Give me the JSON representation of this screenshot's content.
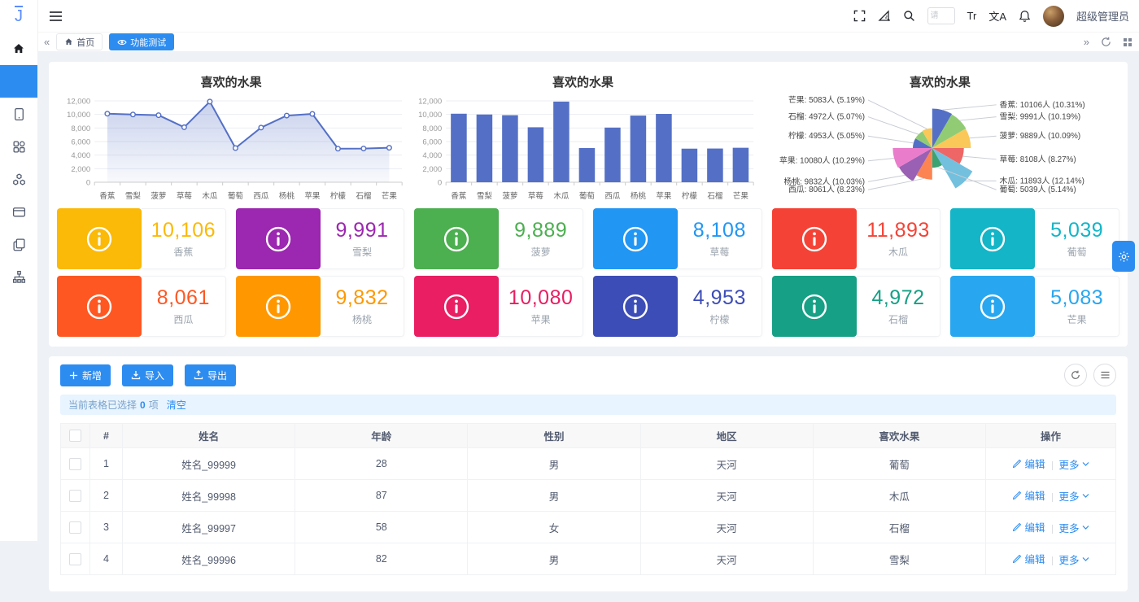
{
  "app": {
    "accent": "#2d8cf0"
  },
  "navbar": {
    "logo": "J",
    "search_placeholder": "请",
    "font_icon_label": "Tr",
    "translate_icon_label": "文A",
    "username": "超级管理员"
  },
  "tabbar": {
    "left_arrow": "«",
    "right_arrow": "»",
    "tabs": [
      {
        "label": "首页",
        "active": false
      },
      {
        "label": "功能测试",
        "active": true
      }
    ]
  },
  "chart_data": [
    {
      "type": "line",
      "title": "喜欢的水果",
      "categories": [
        "香蕉",
        "雪梨",
        "菠萝",
        "草莓",
        "木瓜",
        "葡萄",
        "西瓜",
        "杨桃",
        "苹果",
        "柠檬",
        "石榴",
        "芒果"
      ],
      "values": [
        10106,
        9991,
        9889,
        8108,
        11893,
        5039,
        8061,
        9832,
        10080,
        4953,
        4972,
        5083
      ],
      "ylim": [
        0,
        12000
      ],
      "ytick_step": 2000,
      "color": "#5470c6",
      "area": true,
      "grid": true,
      "legend": "none"
    },
    {
      "type": "bar",
      "title": "喜欢的水果",
      "categories": [
        "香蕉",
        "雪梨",
        "菠萝",
        "草莓",
        "木瓜",
        "葡萄",
        "西瓜",
        "杨桃",
        "苹果",
        "柠檬",
        "石榴",
        "芒果"
      ],
      "values": [
        10106,
        9991,
        9889,
        8108,
        11893,
        5039,
        8061,
        9832,
        10080,
        4953,
        4972,
        5083
      ],
      "ylim": [
        0,
        12000
      ],
      "ytick_step": 2000,
      "color": "#5470c6",
      "grid": true,
      "legend": "none"
    },
    {
      "type": "pie",
      "subtype": "rose",
      "title": "喜欢的水果",
      "items": [
        {
          "name": "香蕉",
          "value": 10106,
          "percent": "10.31"
        },
        {
          "name": "雪梨",
          "value": 9991,
          "percent": "10.19"
        },
        {
          "name": "菠萝",
          "value": 9889,
          "percent": "10.09"
        },
        {
          "name": "草莓",
          "value": 8108,
          "percent": "8.27"
        },
        {
          "name": "木瓜",
          "value": 11893,
          "percent": "12.14"
        },
        {
          "name": "葡萄",
          "value": 5039,
          "percent": "5.14"
        },
        {
          "name": "西瓜",
          "value": 8061,
          "percent": "8.23"
        },
        {
          "name": "杨桃",
          "value": 9832,
          "percent": "10.03"
        },
        {
          "name": "苹果",
          "value": 10080,
          "percent": "10.29"
        },
        {
          "name": "柠檬",
          "value": 4953,
          "percent": "5.05"
        },
        {
          "name": "石榴",
          "value": 4972,
          "percent": "5.07"
        },
        {
          "name": "芒果",
          "value": 5083,
          "percent": "5.19"
        }
      ],
      "palette": [
        "#5470c6",
        "#91cc75",
        "#fac858",
        "#ee6666",
        "#73c0de",
        "#3ba272",
        "#fc8452",
        "#9a60b4",
        "#ea7ccc",
        "#5470c6",
        "#91cc75",
        "#fac858"
      ]
    }
  ],
  "cards": [
    {
      "label": "香蕉",
      "value": "10,106",
      "color": "#fbb908"
    },
    {
      "label": "雪梨",
      "value": "9,991",
      "color": "#9c27b0"
    },
    {
      "label": "菠萝",
      "value": "9,889",
      "color": "#4caf50"
    },
    {
      "label": "草莓",
      "value": "8,108",
      "color": "#2196f3"
    },
    {
      "label": "木瓜",
      "value": "11,893",
      "color": "#f44336"
    },
    {
      "label": "葡萄",
      "value": "5,039",
      "color": "#13b5c7"
    },
    {
      "label": "西瓜",
      "value": "8,061",
      "color": "#ff5722"
    },
    {
      "label": "杨桃",
      "value": "9,832",
      "color": "#ff9800"
    },
    {
      "label": "苹果",
      "value": "10,080",
      "color": "#e91e63"
    },
    {
      "label": "柠檬",
      "value": "4,953",
      "color": "#3d4db7"
    },
    {
      "label": "石榴",
      "value": "4,972",
      "color": "#16a085"
    },
    {
      "label": "芒果",
      "value": "5,083",
      "color": "#28a7f0"
    }
  ],
  "toolbar": {
    "add": "新增",
    "import": "导入",
    "export": "导出"
  },
  "alert": {
    "prefix": "当前表格已选择",
    "count": "0",
    "suffix": "项",
    "clear": "清空"
  },
  "table": {
    "headers": [
      "#",
      "姓名",
      "年龄",
      "性别",
      "地区",
      "喜欢水果",
      "操作"
    ],
    "rows": [
      {
        "index": "1",
        "name": "姓名_99999",
        "age": "28",
        "gender": "男",
        "region": "天河",
        "fruit": "葡萄"
      },
      {
        "index": "2",
        "name": "姓名_99998",
        "age": "87",
        "gender": "男",
        "region": "天河",
        "fruit": "木瓜"
      },
      {
        "index": "3",
        "name": "姓名_99997",
        "age": "58",
        "gender": "女",
        "region": "天河",
        "fruit": "石榴"
      },
      {
        "index": "4",
        "name": "姓名_99996",
        "age": "82",
        "gender": "男",
        "region": "天河",
        "fruit": "雪梨"
      }
    ],
    "actions": {
      "edit": "编辑",
      "more": "更多"
    }
  }
}
